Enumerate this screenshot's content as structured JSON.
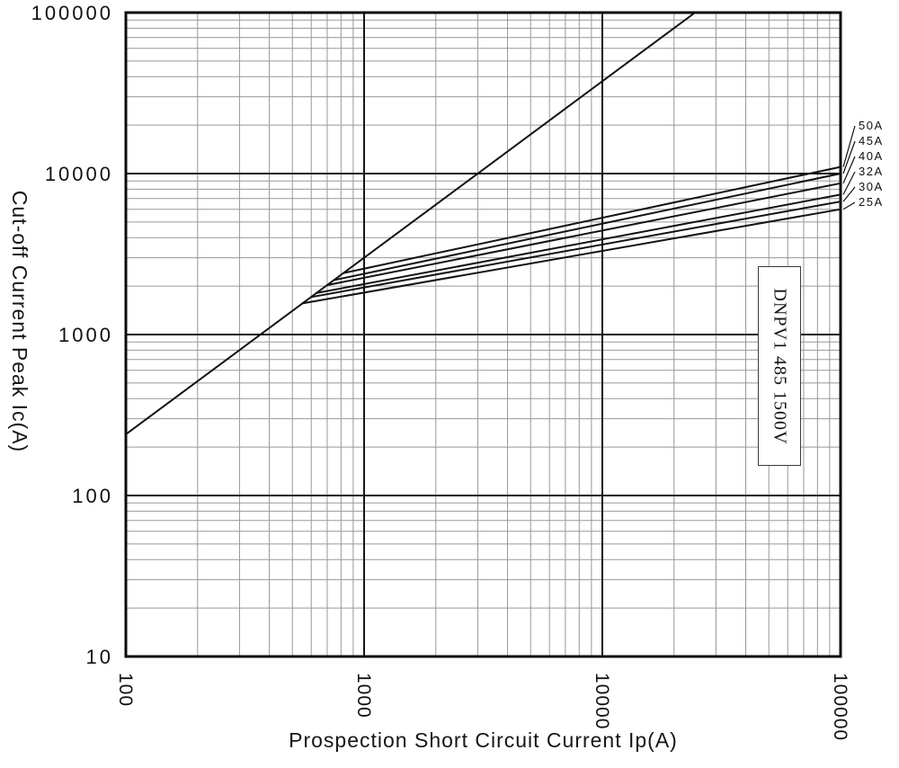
{
  "chart_data": {
    "type": "line",
    "scale": "log-log",
    "title": "",
    "xlabel": "Prospection Short Circuit Current Ip(A)",
    "ylabel": "Cut-off Current Peak Ic(A)",
    "xlim": [
      100,
      100000
    ],
    "ylim": [
      10,
      100000
    ],
    "x_ticks": [
      100,
      1000,
      10000,
      100000
    ],
    "y_ticks": [
      100000,
      10000,
      1000,
      100,
      10
    ],
    "grid": true,
    "legend_position": "right-outside",
    "annotation": "DNPV1 485 1500V",
    "line_color": "#121212",
    "series": [
      {
        "name": "prospective-peak-line",
        "label": "",
        "points": [
          [
            100,
            240
          ],
          [
            24500,
            100000
          ]
        ]
      },
      {
        "name": "50A",
        "label": "50A",
        "points": [
          [
            820,
            2410
          ],
          [
            100000,
            11000
          ]
        ]
      },
      {
        "name": "45A",
        "label": "45A",
        "points": [
          [
            750,
            2180
          ],
          [
            100000,
            10000
          ]
        ]
      },
      {
        "name": "40A",
        "label": "40A",
        "points": [
          [
            700,
            2030
          ],
          [
            100000,
            8700
          ]
        ]
      },
      {
        "name": "32A",
        "label": "32A",
        "points": [
          [
            630,
            1810
          ],
          [
            100000,
            7400
          ]
        ]
      },
      {
        "name": "30A",
        "label": "30A",
        "points": [
          [
            600,
            1710
          ],
          [
            100000,
            6700
          ]
        ]
      },
      {
        "name": "25A",
        "label": "25A",
        "points": [
          [
            550,
            1560
          ],
          [
            100000,
            6000
          ]
        ]
      }
    ]
  }
}
